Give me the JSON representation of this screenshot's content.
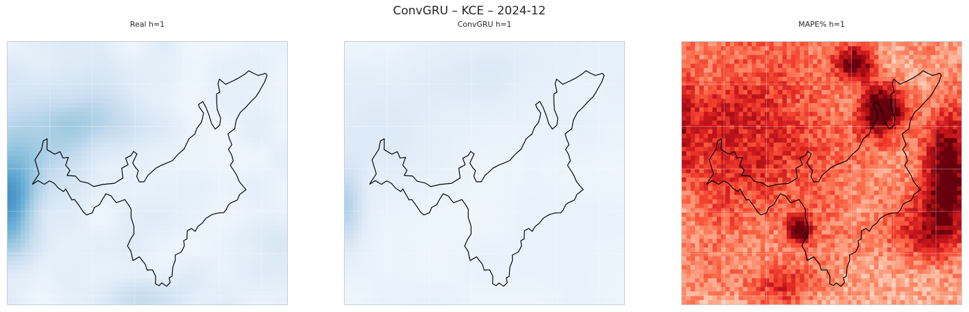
{
  "figure": {
    "title": "ConvGRU – KCE – 2024-12"
  },
  "chart_data": [
    {
      "type": "heatmap",
      "title": "Real h=1",
      "colormap": "Blues",
      "cmap_colors": [
        "#f7fbff",
        "#deebf7",
        "#c6dbef",
        "#9ecae1",
        "#6baed6",
        "#4292c6"
      ],
      "grid": true,
      "axis_ticks": "none",
      "overlay": "region boundary outline (black)",
      "hotspots": [
        {
          "where": "left-center edge",
          "level": 0.95
        },
        {
          "where": "left-upper",
          "level": 0.45
        },
        {
          "where": "upper center-left",
          "level": 0.35
        },
        {
          "where": "bottom center",
          "level": 0.25
        },
        {
          "where": "right-lower",
          "level": 0.15
        }
      ]
    },
    {
      "type": "heatmap",
      "title": "ConvGRU h=1",
      "colormap": "Blues",
      "cmap_colors": [
        "#f7fbff",
        "#deebf7",
        "#c6dbef",
        "#9ecae1",
        "#6baed6",
        "#4292c6"
      ],
      "grid": true,
      "axis_ticks": "none",
      "overlay": "region boundary outline (black)",
      "hotspots": [
        {
          "where": "left-center edge",
          "level": 0.45
        },
        {
          "where": "left-upper",
          "level": 0.2
        },
        {
          "where": "upper center",
          "level": 0.18
        }
      ]
    },
    {
      "type": "heatmap",
      "title": "MAPE% h=1",
      "colormap": "Reds",
      "cmap_colors": [
        "#fff5f0",
        "#fee0d2",
        "#fcbba1",
        "#fc9272",
        "#fb6a4a",
        "#ef3b2c",
        "#cb181d",
        "#a50f15",
        "#67000d"
      ],
      "grid": true,
      "axis_ticks": "none",
      "overlay": "region boundary outline (black)",
      "hotspots": [
        {
          "where": "right edge center",
          "level": 1.0
        },
        {
          "where": "upper center-right",
          "level": 0.95
        },
        {
          "where": "top center-right",
          "level": 0.85
        },
        {
          "where": "lower center",
          "level": 0.9
        },
        {
          "where": "left half",
          "level": 0.5
        },
        {
          "where": "bottom center-left",
          "level": 0.5
        }
      ]
    }
  ]
}
